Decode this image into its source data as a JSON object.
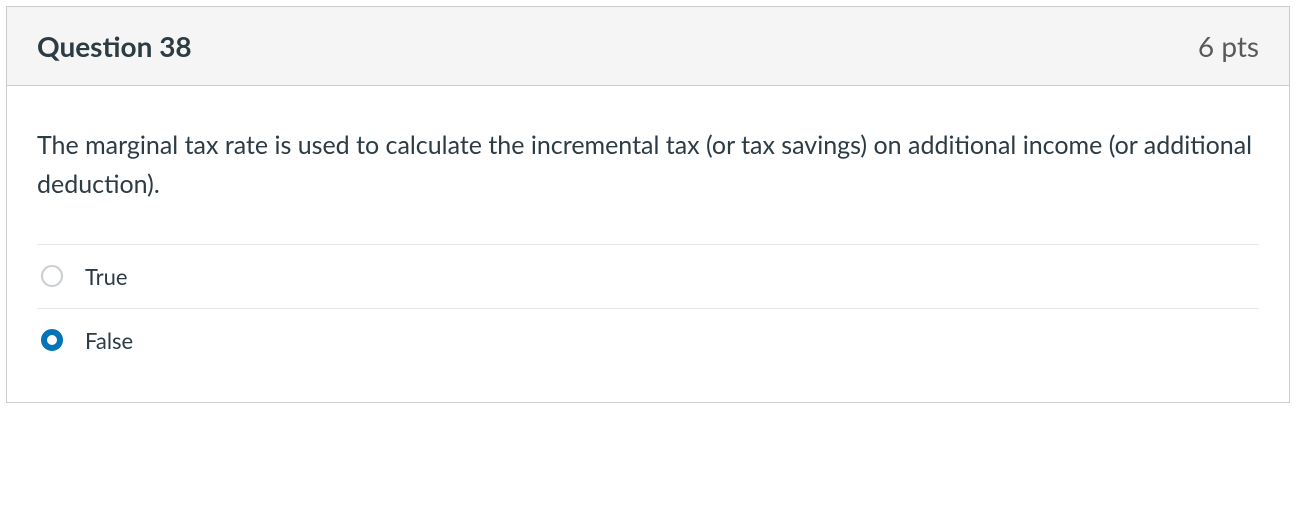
{
  "question": {
    "title": "Question 38",
    "points": "6 pts",
    "text": "The marginal tax rate is used to calculate the incremental tax (or tax savings) on additional income (or additional deduction).",
    "answers": [
      {
        "label": "True",
        "selected": false
      },
      {
        "label": "False",
        "selected": true
      }
    ]
  },
  "colors": {
    "border": "#c7cdd1",
    "header_bg": "#f5f5f5",
    "text_primary": "#2d3b45",
    "text_secondary": "#595959",
    "divider": "#e5e5e5",
    "radio_selected": "#0374b5"
  }
}
